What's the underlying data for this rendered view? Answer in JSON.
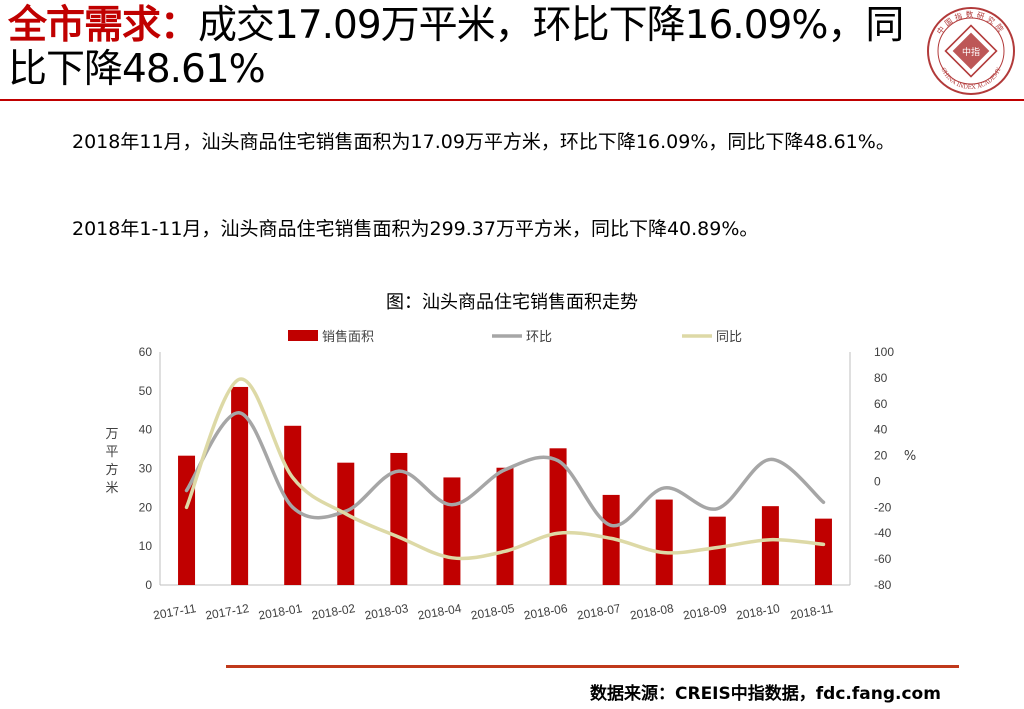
{
  "header": {
    "title_highlight": "全市需求：",
    "title_rest": "成交17.09万平米，环比下降16.09%，同比下降48.61%",
    "logo_text": "中国指数研究院",
    "logo_center": "中指",
    "logo_english": "CHINA INDEX ACADEMY"
  },
  "body": {
    "paragraph1": "2018年11月，汕头商品住宅销售面积为17.09万平方米，环比下降16.09%，同比下降48.61%。",
    "paragraph2": "2018年1-11月，汕头商品住宅销售面积为299.37万平方米，同比下降40.89%。"
  },
  "chart_data": {
    "type": "bar",
    "title": "图：汕头商品住宅销售面积走势",
    "categories": [
      "2017-11",
      "2017-12",
      "2018-01",
      "2018-02",
      "2018-03",
      "2018-04",
      "2018-05",
      "2018-06",
      "2018-07",
      "2018-08",
      "2018-09",
      "2018-10",
      "2018-11"
    ],
    "series": [
      {
        "name": "销售面积",
        "type": "bar",
        "axis": "left",
        "color": "#c00000",
        "values": [
          33.3,
          51,
          41,
          31.5,
          34,
          27.7,
          30.2,
          35.2,
          23.2,
          22,
          17.6,
          20.3,
          17.09
        ]
      },
      {
        "name": "环比",
        "type": "line",
        "axis": "right",
        "color": "#a6a6a6",
        "values": [
          -7,
          53,
          -20,
          -23,
          8,
          -18,
          9,
          16,
          -34,
          -5,
          -21,
          17,
          -16.09
        ]
      },
      {
        "name": "同比",
        "type": "line",
        "axis": "right",
        "color": "#ddd9a6",
        "values": [
          -20,
          79,
          3,
          -25,
          -43,
          -59,
          -54,
          -40,
          -44,
          -55,
          -51,
          -45,
          -48.61
        ]
      }
    ],
    "ylabel": "万平方米",
    "y2label": "%",
    "ylim": [
      0,
      60
    ],
    "yticks": [
      0,
      10,
      20,
      30,
      40,
      50,
      60
    ],
    "y2lim": [
      -80,
      100
    ],
    "y2ticks": [
      -80,
      -60,
      -40,
      -20,
      0,
      20,
      40,
      60,
      80,
      100
    ],
    "legend": "top",
    "grid": false
  },
  "footer": {
    "source": "数据来源：CREIS中指数据，fdc.fang.com"
  }
}
